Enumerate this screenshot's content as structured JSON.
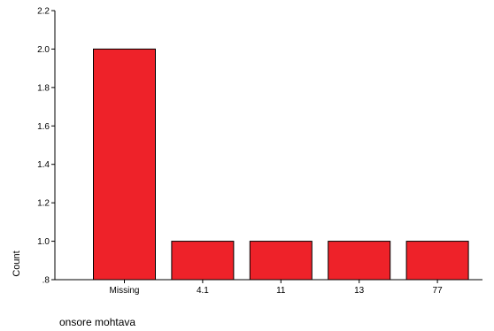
{
  "chart_data": {
    "type": "bar",
    "title": "",
    "xlabel": "onsore mohtava",
    "ylabel": "Count",
    "categories": [
      "Missing",
      "4.1",
      "11",
      "13",
      "77"
    ],
    "values": [
      2.0,
      1.0,
      1.0,
      1.0,
      1.0
    ],
    "ylim": [
      0.8,
      2.2
    ],
    "yticks": [
      ".8",
      "1.0",
      "1.2",
      "1.4",
      "1.6",
      "1.8",
      "2.0",
      "2.2"
    ],
    "ytick_values": [
      0.8,
      1.0,
      1.2,
      1.4,
      1.6,
      1.8,
      2.0,
      2.2
    ],
    "grid": false,
    "legend": "none",
    "bar_color": "#ee2229",
    "bar_edge_color": "#000000"
  }
}
